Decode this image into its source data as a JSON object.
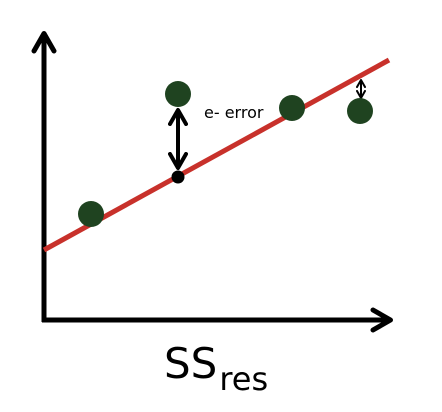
{
  "annotation": "e- error",
  "caption": {
    "main": "SS",
    "subscript": "res"
  }
}
